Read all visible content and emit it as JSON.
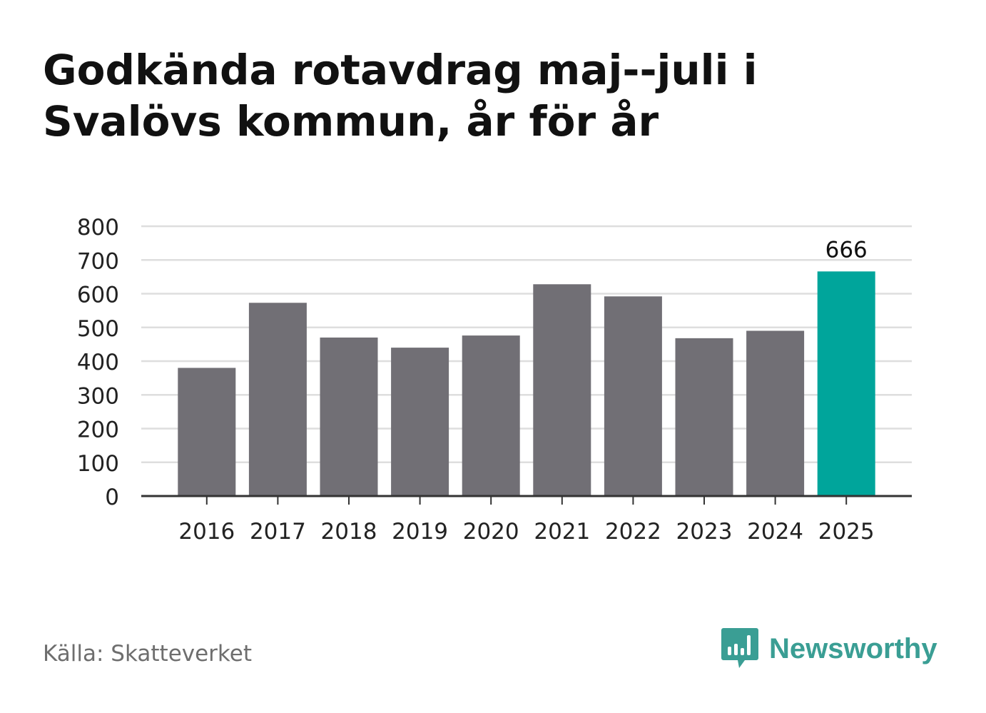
{
  "title": "Godkända rotavdrag maj--juli i Svalövs kommun, år för år",
  "source": "Källa: Skatteverket",
  "brand": "Newsworthy",
  "chart_data": {
    "type": "bar",
    "title": "Godkända rotavdrag maj--juli i Svalövs kommun, år för år",
    "xlabel": "",
    "ylabel": "",
    "categories": [
      "2016",
      "2017",
      "2018",
      "2019",
      "2020",
      "2021",
      "2022",
      "2023",
      "2024",
      "2025"
    ],
    "values": [
      380,
      573,
      470,
      440,
      476,
      628,
      592,
      468,
      490,
      666
    ],
    "highlight_index": 9,
    "highlight_label": "666",
    "ylim": [
      0,
      800
    ],
    "yticks": [
      0,
      100,
      200,
      300,
      400,
      500,
      600,
      700,
      800
    ],
    "grid": true,
    "legend": "none",
    "colors": {
      "bar": "#716f75",
      "highlight": "#00a59b",
      "grid": "#dedede",
      "axis": "#333333"
    }
  }
}
